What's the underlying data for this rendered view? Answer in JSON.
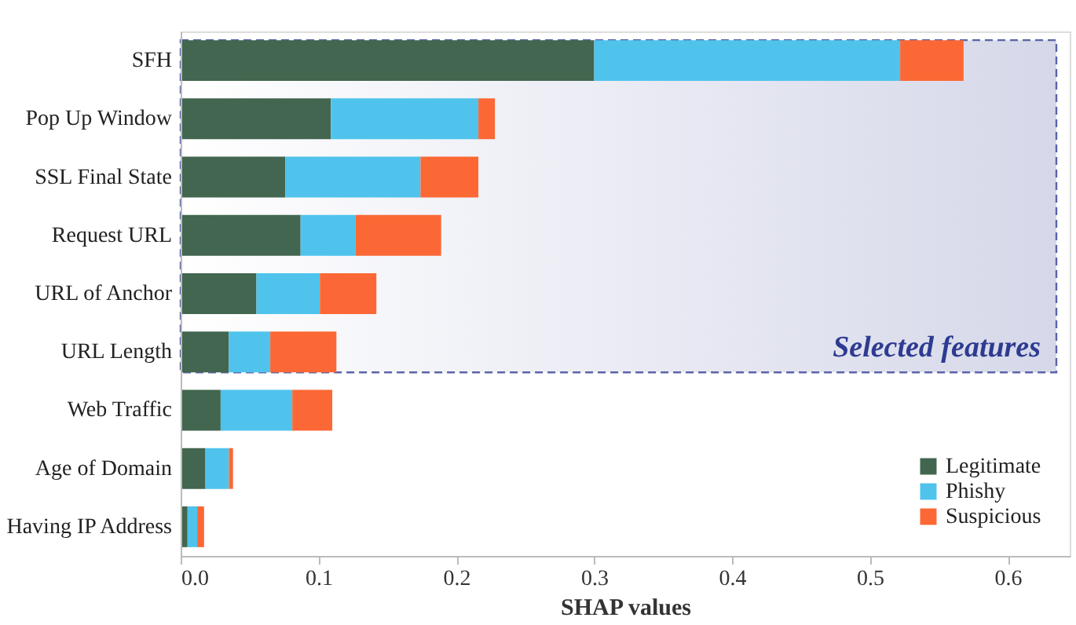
{
  "chart_data": {
    "type": "bar",
    "orientation": "horizontal",
    "stacked": true,
    "xlabel": "SHAP values",
    "categories": [
      "SFH",
      "Pop Up Window",
      "SSL Final State",
      "Request URL",
      "URL of Anchor",
      "URL Length",
      "Web Traffic",
      "Age of Domain",
      "Having IP Address"
    ],
    "series": [
      {
        "name": "Legitimate",
        "color": "#42664f",
        "values": [
          0.3,
          0.109,
          0.076,
          0.087,
          0.055,
          0.035,
          0.029,
          0.018,
          0.005
        ]
      },
      {
        "name": "Phishy",
        "color": "#4fc3ec",
        "values": [
          0.222,
          0.107,
          0.098,
          0.04,
          0.046,
          0.03,
          0.052,
          0.017,
          0.007
        ]
      },
      {
        "name": "Suspicious",
        "color": "#fb6835",
        "values": [
          0.046,
          0.012,
          0.042,
          0.062,
          0.041,
          0.048,
          0.029,
          0.003,
          0.005
        ]
      }
    ],
    "xlim": [
      0,
      0.645
    ],
    "xticks": [
      {
        "value": 0,
        "label": "0.0"
      },
      0.1,
      0.2,
      0.3,
      0.4,
      0.5,
      0.6
    ],
    "bands": [
      {
        "axis": "y",
        "from": "SFH",
        "to": "URL Length",
        "label": "Selected features",
        "color": "#5a64a8"
      }
    ],
    "legend": "bottom right",
    "grid": false
  }
}
